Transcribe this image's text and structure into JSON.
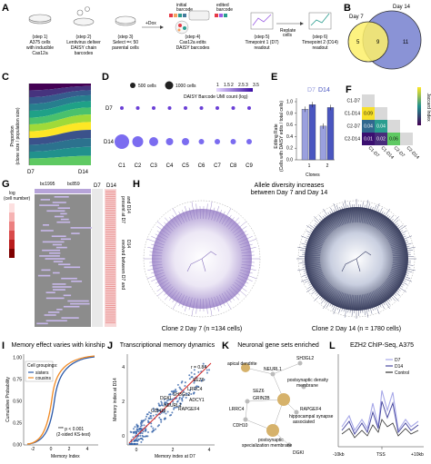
{
  "panels": {
    "A": {
      "letter": "A",
      "steps": [
        {
          "head": "(step 1)",
          "lines": [
            "A375 cells",
            "with inducible",
            "Cas12a"
          ]
        },
        {
          "head": "(step 2)",
          "lines": [
            "Lentivirus deliver",
            "DAISY chain",
            "barcodes"
          ]
        },
        {
          "head": "(step 3)",
          "lines": [
            "Select =< 50",
            "parental cells"
          ]
        },
        {
          "head": "(step 4)",
          "lines": [
            "Cas12a edits",
            "DAISY barcodes"
          ]
        },
        {
          "head": "(step 5)",
          "lines": [
            "Timepoint 1 (D7)",
            "readout"
          ]
        },
        {
          "head": "(step 6)",
          "lines": [
            "Timepoint 2 (D14)",
            "readout"
          ]
        }
      ],
      "initial_barcode": "initial",
      "initial_barcode2": "barcode",
      "edited_barcode": "edited",
      "edited_barcode2": "barcode",
      "dox": "+Dox",
      "replate": "Replate",
      "replate2": "cells"
    },
    "B": {
      "letter": "B",
      "chart_data": {
        "type": "venn",
        "sets": [
          {
            "name": "Day 7",
            "color": "#fdf06a"
          },
          {
            "name": "Day 14",
            "color": "#8a93d6"
          }
        ],
        "only_a": "5",
        "overlap": "9",
        "only_b": "11"
      }
    },
    "C": {
      "letter": "C",
      "ylabel": "Proportion",
      "ylabel2": "(clone size / population size)",
      "x_d7": "D7",
      "x_d14": "D14"
    },
    "D": {
      "letter": "D",
      "legend_500": "500 cells",
      "legend_1000": "1000 cells",
      "colorbar_label": "DAISY Barcode UMI count (log)",
      "colorbar_ticks": [
        "1",
        "1.5",
        "2",
        "2.5",
        "3",
        "3.5"
      ],
      "chart_data": {
        "type": "bubble",
        "rows": [
          "D7",
          "D14"
        ],
        "categories": [
          "C1",
          "C2",
          "C3",
          "C4",
          "C5",
          "C6",
          "C7",
          "C8",
          "C9"
        ],
        "sizes_d7": [
          2,
          2,
          2,
          2,
          2,
          2,
          2,
          2,
          2
        ],
        "sizes_d14": [
          8,
          6,
          5,
          4,
          4,
          3,
          3,
          3,
          3
        ]
      }
    },
    "E": {
      "letter": "E",
      "ylabel": "Editing Rate",
      "ylabel2": "(Cells with DAISY edits / total cells)",
      "xlabel": "Clones",
      "legend_d7": "D7",
      "legend_d14": "D14",
      "yticks": [
        "0.0",
        "0.2",
        "0.4",
        "0.6",
        "0.8",
        "1.0"
      ],
      "chart_data": {
        "type": "bar",
        "categories": [
          "1",
          "2"
        ],
        "series": [
          {
            "name": "D7",
            "values": [
              0.87,
              0.58
            ]
          },
          {
            "name": "D14",
            "values": [
              0.95,
              0.9
            ]
          }
        ],
        "ylim": [
          0,
          1.0
        ]
      }
    },
    "F": {
      "letter": "F",
      "colorbar_label": "Jaccard Index",
      "labels": [
        "C1-D7",
        "C1-D14",
        "C2-D7",
        "C2-D14"
      ],
      "chart_data": {
        "type": "heatmap",
        "cells": [
          {
            "r": 1,
            "c": 0,
            "v": "0.09",
            "color": "#f7e02a"
          },
          {
            "r": 2,
            "c": 0,
            "v": "0.04",
            "color": "#31688e"
          },
          {
            "r": 2,
            "c": 1,
            "v": "0.04",
            "color": "#2a9d8f"
          },
          {
            "r": 3,
            "c": 0,
            "v": "0.01",
            "color": "#3b0f70"
          },
          {
            "r": 3,
            "c": 1,
            "v": "0.02",
            "color": "#472c7a"
          },
          {
            "r": 3,
            "c": 2,
            "v": "0.06",
            "color": "#5ec962"
          }
        ]
      }
    },
    "G": {
      "letter": "G",
      "bc1": "bc1995",
      "bc2": "bc859",
      "d7": "D7",
      "d14": "D14",
      "scale_label": "log",
      "scale_label2": "(cell number)",
      "right_label1": "present at D7",
      "right_label1b": "and D14",
      "right_label2": "evolved between D7 and",
      "right_label2b": "D14"
    },
    "H": {
      "letter": "H",
      "title1": "Allele diversity increases",
      "title2": "between Day 7 and Day 14",
      "caption_left": "Clone 2 Day 7 (n =134 cells)",
      "caption_right": "Clone 2 Day 14 (n = 1780 cells)"
    },
    "I": {
      "letter": "I",
      "title": "Memory effect varies with kinship",
      "xlabel": "Memory Index",
      "ylabel": "Cumulative Probability",
      "legend_title": "Cell groupings:",
      "legend": [
        {
          "name": "sisters",
          "color": "#2b59a8"
        },
        {
          "name": "cousins",
          "color": "#f08a24"
        }
      ],
      "stat1": "*** p < 0.001",
      "stat2": "(2-sided KS-test)",
      "xticks": [
        "-2",
        "0",
        "2",
        "4"
      ],
      "yticks": [
        "0.00",
        "0.25",
        "0.50",
        "0.75",
        "1.00"
      ]
    },
    "J": {
      "letter": "J",
      "title": "Transcriptional memory dynamics",
      "xlabel": "Memory index at D7",
      "ylabel": "Memory index at D14",
      "r_label": "r = 0.84",
      "genes": [
        "SEZ6",
        "DGKI",
        "SH3GL2",
        "LRRC4",
        "ADCY1",
        "RAPGEF4",
        "NEURL1",
        "CDH10"
      ],
      "xticks": [
        "0",
        "2",
        "4"
      ],
      "yticks": [
        "0",
        "2",
        "4"
      ]
    },
    "K": {
      "letter": "K",
      "title": "Neuronal gene sets enriched",
      "nodes": [
        "apical dendrite",
        "NEURL1",
        "SH3GL2",
        "postsynaptic density",
        "membrane",
        "SEZ6",
        "GRIN2B",
        "RAPGEF4",
        "LRRC4",
        "hippocampal synapse",
        "associated",
        "CDH10",
        "postsynaptic",
        "specialization membrane",
        "DGKI"
      ]
    },
    "L": {
      "letter": "L",
      "title": "EZH2 ChIP-Seq, A375",
      "legend": [
        {
          "name": "D7",
          "color": "#a7a8e8"
        },
        {
          "name": "D14",
          "color": "#4a4aa0"
        },
        {
          "name": "Control",
          "color": "#333333"
        }
      ],
      "xticks": [
        "-10kb",
        "TSS",
        "+10kb"
      ]
    }
  }
}
